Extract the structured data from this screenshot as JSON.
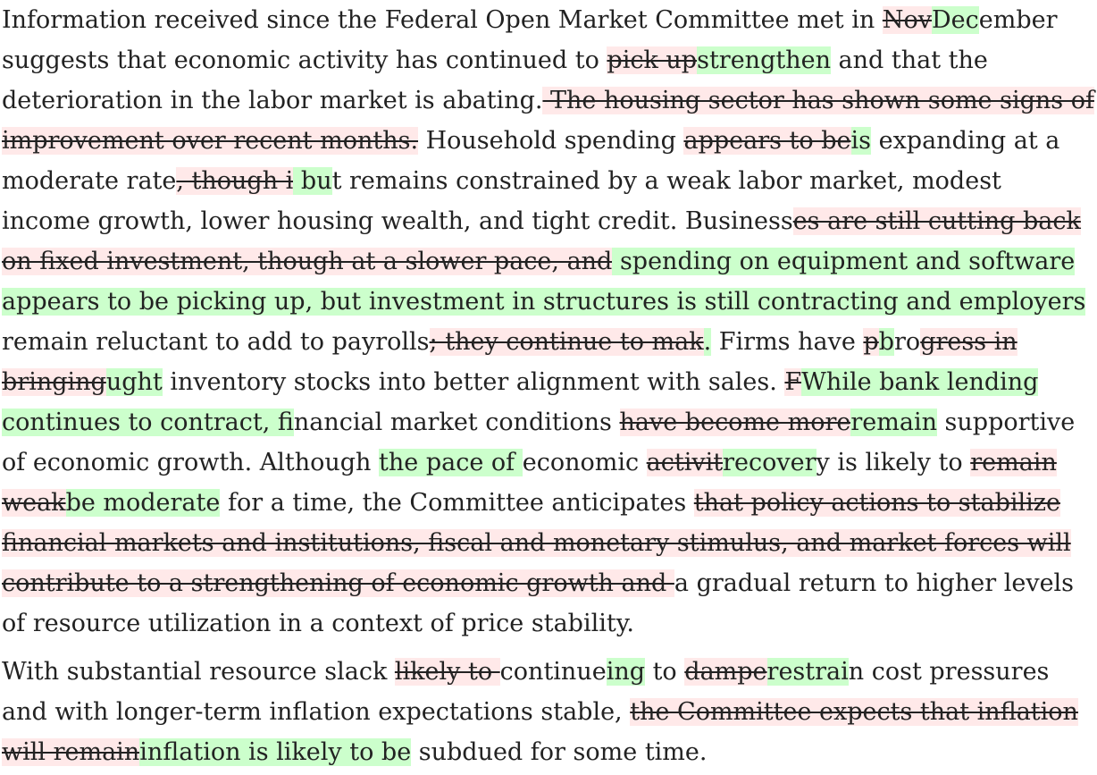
{
  "document": {
    "paragraphs": [
      {
        "segments": [
          {
            "type": "eq",
            "text": "Information received since the Federal Open Market Committee met in "
          },
          {
            "type": "del",
            "text": "Nov"
          },
          {
            "type": "ins",
            "text": "Dec"
          },
          {
            "type": "eq",
            "text": "ember suggests that economic activity has continued to "
          },
          {
            "type": "del",
            "text": "pick up"
          },
          {
            "type": "ins",
            "text": "strengthen"
          },
          {
            "type": "eq",
            "text": " and that the deterioration in the labor market is abating."
          },
          {
            "type": "del",
            "text": " The housing sector has shown some signs of improvement over recent months."
          },
          {
            "type": "eq",
            "text": " Household spending "
          },
          {
            "type": "del",
            "text": "appears to be"
          },
          {
            "type": "ins",
            "text": "is"
          },
          {
            "type": "eq",
            "text": " expanding at a moderate rate"
          },
          {
            "type": "del",
            "text": ", though i"
          },
          {
            "type": "ins",
            "text": " bu"
          },
          {
            "type": "eq",
            "text": "t remains constrained by a weak labor market, modest income growth, lower housing wealth, and tight credit. Business"
          },
          {
            "type": "del",
            "text": "es are still cutting back on fixed investment, though at a slower pace, and"
          },
          {
            "type": "ins",
            "text": " spending on equipment and software appears to be picking up, but investment in structures is still contracting and employers"
          },
          {
            "type": "eq",
            "text": " remain reluctant to add to payrolls"
          },
          {
            "type": "del",
            "text": "; they continue to mak"
          },
          {
            "type": "ins",
            "text": "."
          },
          {
            "type": "eq",
            "text": " Firms have "
          },
          {
            "type": "del",
            "text": "p"
          },
          {
            "type": "ins",
            "text": "b"
          },
          {
            "type": "eq",
            "text": "ro"
          },
          {
            "type": "del",
            "text": "gress in bringing"
          },
          {
            "type": "ins",
            "text": "ught"
          },
          {
            "type": "eq",
            "text": " inventory stocks into better alignment with sales. "
          },
          {
            "type": "del",
            "text": "F"
          },
          {
            "type": "ins",
            "text": "While bank lending continues to contract, f"
          },
          {
            "type": "eq",
            "text": "inancial market conditions "
          },
          {
            "type": "del",
            "text": "have become more"
          },
          {
            "type": "ins",
            "text": "remain"
          },
          {
            "type": "eq",
            "text": " supportive of economic growth. Although "
          },
          {
            "type": "ins",
            "text": "the pace of "
          },
          {
            "type": "eq",
            "text": "economic "
          },
          {
            "type": "del",
            "text": "activit"
          },
          {
            "type": "ins",
            "text": "recover"
          },
          {
            "type": "eq",
            "text": "y is likely to "
          },
          {
            "type": "del",
            "text": "remain weak"
          },
          {
            "type": "ins",
            "text": "be moderate"
          },
          {
            "type": "eq",
            "text": " for a time, the Committee anticipates "
          },
          {
            "type": "del",
            "text": "that policy actions to stabilize financial markets and institutions, fiscal and monetary stimulus, and market forces will contribute to a strengthening of economic growth and "
          },
          {
            "type": "eq",
            "text": "a gradual return to higher levels of resource utilization in a context of price stability."
          }
        ]
      },
      {
        "segments": [
          {
            "type": "eq",
            "text": "With substantial resource slack "
          },
          {
            "type": "del",
            "text": "likely to "
          },
          {
            "type": "eq",
            "text": "continue"
          },
          {
            "type": "ins",
            "text": "ing"
          },
          {
            "type": "eq",
            "text": " to "
          },
          {
            "type": "del",
            "text": "dampe"
          },
          {
            "type": "ins",
            "text": "restrai"
          },
          {
            "type": "eq",
            "text": "n cost pressures and with longer-term inflation expectations stable, "
          },
          {
            "type": "del",
            "text": "the Committee expects that inflation will remain"
          },
          {
            "type": "ins",
            "text": "inflation is likely to be"
          },
          {
            "type": "eq",
            "text": " subdued for some time."
          }
        ]
      }
    ]
  },
  "colors": {
    "deleted_background": "#ffe9e9",
    "inserted_background": "#ccffcc",
    "text": "#222222"
  }
}
